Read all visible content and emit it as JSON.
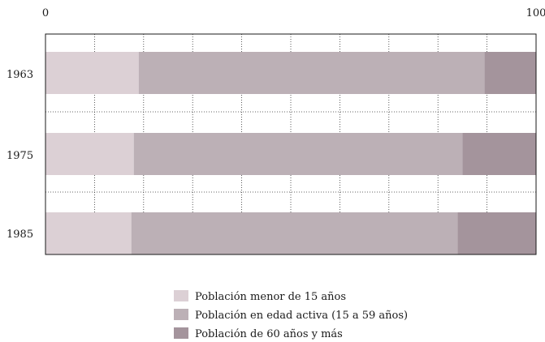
{
  "chart_data": {
    "type": "bar",
    "orientation": "horizontal",
    "stacked": true,
    "xlim": [
      0,
      100
    ],
    "x_ticks": [
      "0",
      "100"
    ],
    "categories": [
      "1963",
      "1975",
      "1985"
    ],
    "series": [
      {
        "name": "Población menor de 15 años",
        "values": [
          19,
          18,
          17.5
        ],
        "color": "#dcd0d5"
      },
      {
        "name": "Población en edad activa (15 a 59 años)",
        "values": [
          70.5,
          67,
          66.5
        ],
        "color": "#bcb0b6"
      },
      {
        "name": "Población de 60 años y más",
        "values": [
          10.5,
          15,
          16
        ],
        "color": "#a4949c"
      }
    ],
    "grid": true,
    "legend_position": "bottom"
  }
}
